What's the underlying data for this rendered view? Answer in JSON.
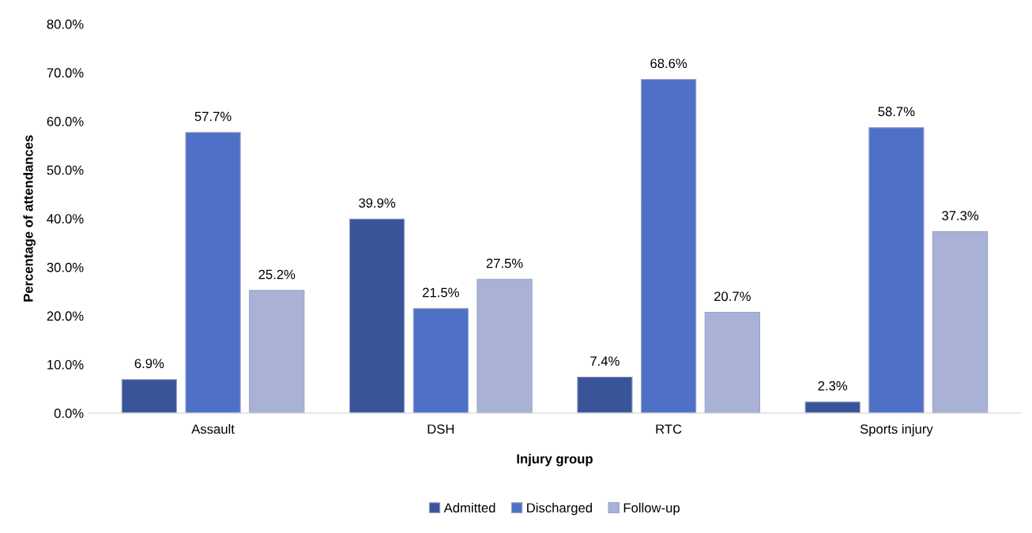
{
  "chart_data": {
    "type": "bar",
    "xlabel": "Injury group",
    "ylabel": "Percentage of attendances",
    "categories": [
      "Assault",
      "DSH",
      "RTC",
      "Sports injury"
    ],
    "series": [
      {
        "name": "Admitted",
        "color": "#3a5499",
        "values": [
          6.9,
          39.9,
          7.4,
          2.3
        ],
        "value_labels": [
          "6.9%",
          "39.9%",
          "7.4%",
          "2.3%"
        ]
      },
      {
        "name": "Discharged",
        "color": "#4e70c6",
        "values": [
          57.7,
          21.5,
          68.6,
          58.7
        ],
        "value_labels": [
          "57.7%",
          "21.5%",
          "68.6%",
          "58.7%"
        ]
      },
      {
        "name": "Follow-up",
        "color": "#a9b2d6",
        "values": [
          25.2,
          27.5,
          20.7,
          37.3
        ],
        "value_labels": [
          "25.2%",
          "27.5%",
          "20.7%",
          "37.3%"
        ]
      }
    ],
    "ylim": [
      0,
      80
    ],
    "yticks": [
      {
        "value": 0,
        "label": "0.0%"
      },
      {
        "value": 10,
        "label": "10.0%"
      },
      {
        "value": 20,
        "label": "20.0%"
      },
      {
        "value": 30,
        "label": "30.0%"
      },
      {
        "value": 40,
        "label": "40.0%"
      },
      {
        "value": 50,
        "label": "50.0%"
      },
      {
        "value": 60,
        "label": "60.0%"
      },
      {
        "value": 70,
        "label": "70.0%"
      },
      {
        "value": 80,
        "label": "80.0%"
      }
    ],
    "grid": false,
    "legend": "bottom"
  }
}
